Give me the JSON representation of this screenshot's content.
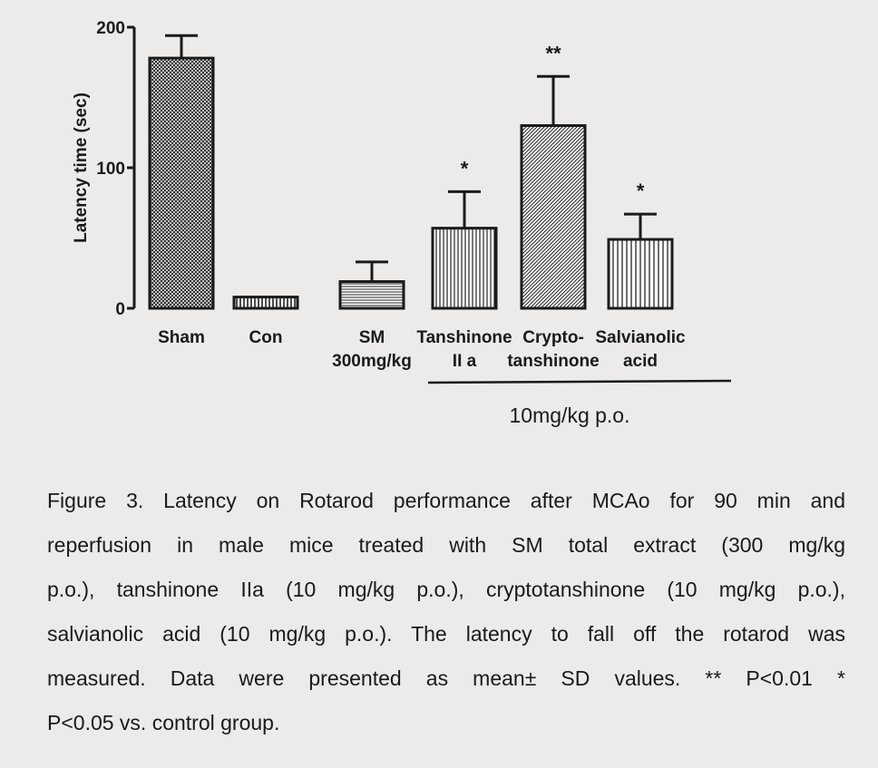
{
  "chart_data": {
    "type": "bar",
    "ylabel": "Latency time (sec)",
    "ylim": [
      0,
      200
    ],
    "yticks": [
      "0",
      "100",
      "200"
    ],
    "categories": [
      [
        "Sham",
        ""
      ],
      [
        "Con",
        ""
      ],
      [
        "SM",
        "300mg/kg"
      ],
      [
        "Tanshinone",
        "II a"
      ],
      [
        "Crypto-",
        "tanshinone"
      ],
      [
        "Salvianolic",
        "acid"
      ]
    ],
    "values": [
      178,
      8,
      19,
      57,
      130,
      49
    ],
    "errors": [
      16,
      0,
      14,
      26,
      35,
      18
    ],
    "significance": [
      "",
      "",
      "",
      "*",
      "**",
      "*"
    ],
    "patterns": [
      "crosshatch",
      "vertical-dense",
      "horizontal",
      "vertical",
      "diagonal",
      "vertical-sparse"
    ],
    "group_label": "10mg/kg p.o.",
    "group_span": [
      3,
      5
    ]
  },
  "caption": {
    "lines": [
      "Figure 3.  Latency on Rotarod performance after MCAo for 90 min and",
      "reperfusion   in male mice treated with SM total extract (300 mg/kg",
      "p.o.), tanshinone IIa (10 mg/kg p.o.), cryptotanshinone (10 mg/kg p.o.),",
      "salvianolic acid (10 mg/kg p.o.). The latency to fall off the rotarod was",
      "measured. Data were presented as mean± SD values. ** P<0.01 *",
      "P<0.05 vs. control group."
    ]
  }
}
